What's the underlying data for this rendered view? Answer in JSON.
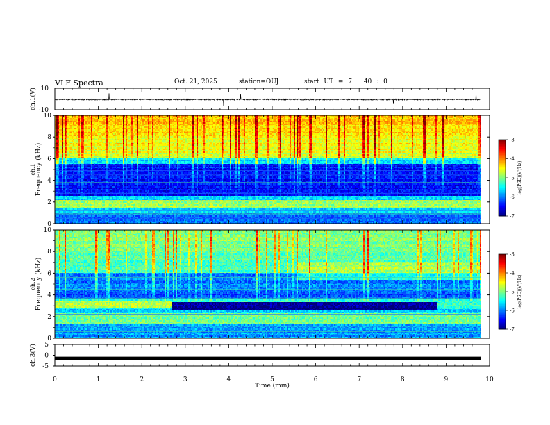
{
  "header": {
    "title": "VLF Spectra",
    "date": "Oct. 21, 2025",
    "station": "station=OUJ",
    "start_label": "start",
    "ut_label": "UT",
    "equals": "=",
    "hour": "7",
    "colon1": ":",
    "minute": "40",
    "colon2": ":",
    "second": "0"
  },
  "chart_data": [
    {
      "id": "ch1-waveform",
      "type": "line",
      "ylabel": "ch.1(V)",
      "ylim": [
        -10,
        10
      ],
      "yticks": [
        "10",
        "-10"
      ],
      "baseline": -0.5,
      "noise_amplitude": 0.6,
      "note": "continuous noisy waveform with sparse impulsive spikes"
    },
    {
      "id": "ch1-spectrogram",
      "type": "heatmap",
      "title": "ch.1",
      "ylabel": "Frequency (kHz)",
      "ylim": [
        0,
        10
      ],
      "yticks": [
        "0",
        "2",
        "4",
        "6",
        "8",
        "10"
      ],
      "xlim": [
        0,
        9.8
      ],
      "colorbar": {
        "label": "log(PSD)(V²/Hz)",
        "range": [
          -7,
          -3
        ],
        "ticks": [
          "-3",
          "-4",
          "-5",
          "-6",
          "-7"
        ]
      },
      "features": [
        {
          "name": "upper band 6-10 kHz",
          "level": -4.3
        },
        {
          "name": "quiet band 2.5-6 kHz",
          "level": -6.4
        },
        {
          "name": "band near 1.5-2 kHz",
          "level": -4.8
        },
        {
          "name": "low band 0-1 kHz",
          "level": -6.0
        }
      ]
    },
    {
      "id": "ch2-spectrogram",
      "type": "heatmap",
      "title": "ch.2",
      "ylabel": "Frequency (kHz)",
      "ylim": [
        0,
        10
      ],
      "yticks": [
        "0",
        "2",
        "4",
        "6",
        "8",
        "10"
      ],
      "xlim": [
        0,
        9.8
      ],
      "colorbar": {
        "label": "log(PSD)(V²/Hz)",
        "range": [
          -7,
          -3
        ],
        "ticks": [
          "-3",
          "-4",
          "-5",
          "-6",
          "-7"
        ]
      },
      "features": [
        {
          "name": "upper band 6-10 kHz",
          "level": -5.1
        },
        {
          "name": "band 2.8-3.5 kHz before 2.7 min",
          "level": -4.8
        },
        {
          "name": "dark band 2.5-3.2 kHz from 2.7 to 8.8 min",
          "level": -6.9
        },
        {
          "name": "band 6-7 kHz after 5.6 min",
          "level": -4.8
        },
        {
          "name": "band 1.5-2.5 kHz",
          "level": -5.0
        }
      ]
    },
    {
      "id": "ch3-waveform",
      "type": "line",
      "ylabel": "ch.3(V)",
      "ylim": [
        -5,
        5
      ],
      "yticks": [
        "5",
        "0",
        "-5"
      ],
      "baseline": -1.5,
      "note": "flat thick trace"
    }
  ],
  "xaxis": {
    "label": "Time  (min)",
    "range": [
      0,
      10
    ],
    "ticks": [
      "0",
      "1",
      "2",
      "3",
      "4",
      "5",
      "6",
      "7",
      "8",
      "9",
      "10"
    ]
  }
}
